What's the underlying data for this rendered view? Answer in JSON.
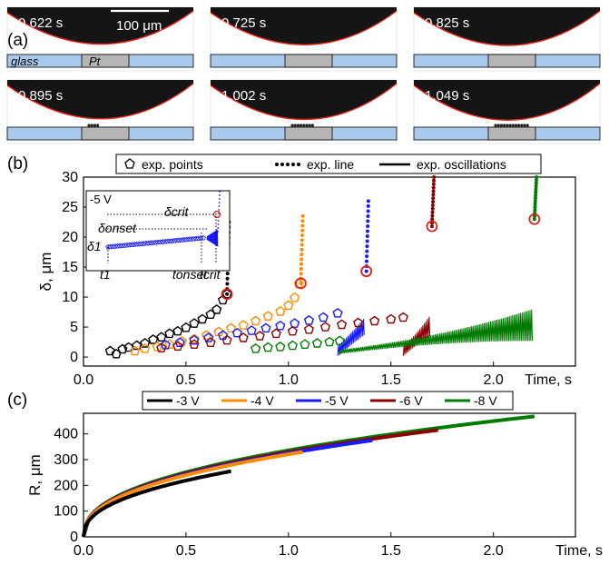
{
  "panel_a": {
    "label": "(a)",
    "scale_bar_label": "100 μm",
    "glass_label": "glass",
    "pt_label": "Pt",
    "frames": [
      "0.622 s",
      "0.725 s",
      "0.825 s",
      "0.895 s",
      "1.002 s",
      "1.049 s"
    ]
  },
  "chart_data": [
    {
      "panel": "(b)",
      "type": "scatter",
      "xlabel": "Time, s",
      "ylabel": "δ, μm",
      "xlim": [
        0,
        2.4
      ],
      "ylim": [
        -1.5,
        30
      ],
      "xticks": [
        "0.0",
        "0.5",
        "1.0",
        "1.5",
        "2.0"
      ],
      "yticks": [
        "0",
        "5",
        "10",
        "15",
        "20",
        "25",
        "30"
      ],
      "legend": [
        "exp. points",
        "exp. line",
        "exp. oscillations"
      ],
      "legend_position": "top",
      "series": [
        {
          "name": "-3 V",
          "color": "#000000",
          "points": [
            [
              0.13,
              1.0
            ],
            [
              0.16,
              0.5
            ],
            [
              0.19,
              1.3
            ],
            [
              0.22,
              1.6
            ],
            [
              0.26,
              1.9
            ],
            [
              0.3,
              2.3
            ],
            [
              0.34,
              2.9
            ],
            [
              0.38,
              3.3
            ],
            [
              0.42,
              3.9
            ],
            [
              0.46,
              4.3
            ],
            [
              0.5,
              4.9
            ],
            [
              0.54,
              5.6
            ],
            [
              0.58,
              6.3
            ],
            [
              0.62,
              7.1
            ],
            [
              0.65,
              7.9
            ],
            [
              0.68,
              9.5
            ],
            [
              0.7,
              10.5
            ]
          ],
          "critical": [
            0.7,
            10.5
          ],
          "line_end": [
            0.71,
            22.5
          ]
        },
        {
          "name": "-4 V",
          "color": "#ff8c00",
          "points": [
            [
              0.25,
              1.0
            ],
            [
              0.3,
              1.4
            ],
            [
              0.36,
              1.7
            ],
            [
              0.42,
              2.1
            ],
            [
              0.48,
              2.6
            ],
            [
              0.54,
              3.0
            ],
            [
              0.6,
              3.6
            ],
            [
              0.66,
              4.2
            ],
            [
              0.72,
              4.8
            ],
            [
              0.78,
              5.3
            ],
            [
              0.84,
              6.0
            ],
            [
              0.9,
              6.8
            ],
            [
              0.96,
              7.6
            ],
            [
              1.0,
              8.6
            ],
            [
              1.03,
              9.9
            ],
            [
              1.05,
              12.2
            ]
          ],
          "critical": [
            1.06,
            12.3
          ],
          "line_end": [
            1.07,
            23.5
          ]
        },
        {
          "name": "-5 V",
          "color": "#1a1aff",
          "points": [
            [
              0.4,
              2.0
            ],
            [
              0.47,
              2.4
            ],
            [
              0.54,
              2.8
            ],
            [
              0.61,
              3.2
            ],
            [
              0.68,
              3.6
            ],
            [
              0.75,
              4.0
            ],
            [
              0.82,
              4.4
            ],
            [
              0.89,
              4.8
            ],
            [
              0.96,
              5.2
            ],
            [
              1.03,
              5.6
            ],
            [
              1.1,
              6.1
            ],
            [
              1.17,
              6.6
            ],
            [
              1.24,
              7.3
            ]
          ],
          "oscillation": [
            1.24,
            1.37,
            7.3,
            11.5
          ],
          "critical": [
            1.38,
            14.3
          ],
          "line_end": [
            1.39,
            26.0
          ]
        },
        {
          "name": "-6 V",
          "color": "#8b0000",
          "points": [
            [
              0.38,
              1.5
            ],
            [
              0.46,
              1.8
            ],
            [
              0.54,
              2.1
            ],
            [
              0.62,
              2.4
            ],
            [
              0.7,
              2.8
            ],
            [
              0.78,
              3.2
            ],
            [
              0.86,
              3.5
            ],
            [
              0.94,
              3.9
            ],
            [
              1.02,
              4.3
            ],
            [
              1.1,
              4.6
            ],
            [
              1.18,
              5.0
            ],
            [
              1.26,
              5.4
            ],
            [
              1.34,
              5.7
            ],
            [
              1.42,
              6.0
            ],
            [
              1.5,
              6.3
            ],
            [
              1.56,
              6.6
            ]
          ],
          "oscillation": [
            1.56,
            1.69,
            6.6,
            14.0
          ],
          "critical": [
            1.7,
            21.8
          ],
          "line_end": [
            1.71,
            30.0
          ]
        },
        {
          "name": "-8 V",
          "color": "#007a00",
          "points": [
            [
              0.84,
              1.4
            ],
            [
              0.9,
              1.6
            ],
            [
              0.96,
              1.7
            ],
            [
              1.02,
              1.9
            ],
            [
              1.08,
              2.1
            ],
            [
              1.14,
              2.3
            ],
            [
              1.2,
              2.5
            ],
            [
              1.25,
              2.7
            ]
          ],
          "oscillation": [
            1.25,
            2.19,
            2.7,
            21.0
          ],
          "critical": [
            2.2,
            23.0
          ],
          "line_end": [
            2.21,
            30.0
          ]
        }
      ],
      "inset": {
        "label": "-5 V",
        "annotations": [
          "δcrit",
          "δonset",
          "δ1",
          "t1",
          "tonset",
          "tcrit"
        ]
      }
    },
    {
      "panel": "(c)",
      "type": "line",
      "xlabel": "Time, s",
      "ylabel": "R, μm",
      "xlim": [
        0,
        2.4
      ],
      "ylim": [
        0,
        480
      ],
      "xticks": [
        "0.0",
        "0.5",
        "1.0",
        "1.5",
        "2.0"
      ],
      "yticks": [
        "0",
        "100",
        "200",
        "300",
        "400"
      ],
      "legend_position": "top",
      "series": [
        {
          "name": "-3 V",
          "color": "#000000",
          "x_end": 0.72,
          "y_end": 255
        },
        {
          "name": "-4 V",
          "color": "#ff8c00",
          "x_end": 1.07,
          "y_end": 330
        },
        {
          "name": "-5 V",
          "color": "#1a1aff",
          "x_end": 1.41,
          "y_end": 375
        },
        {
          "name": "-6 V",
          "color": "#8b0000",
          "x_end": 1.73,
          "y_end": 415
        },
        {
          "name": "-8 V",
          "color": "#007a00",
          "x_end": 2.2,
          "y_end": 468
        }
      ]
    }
  ]
}
